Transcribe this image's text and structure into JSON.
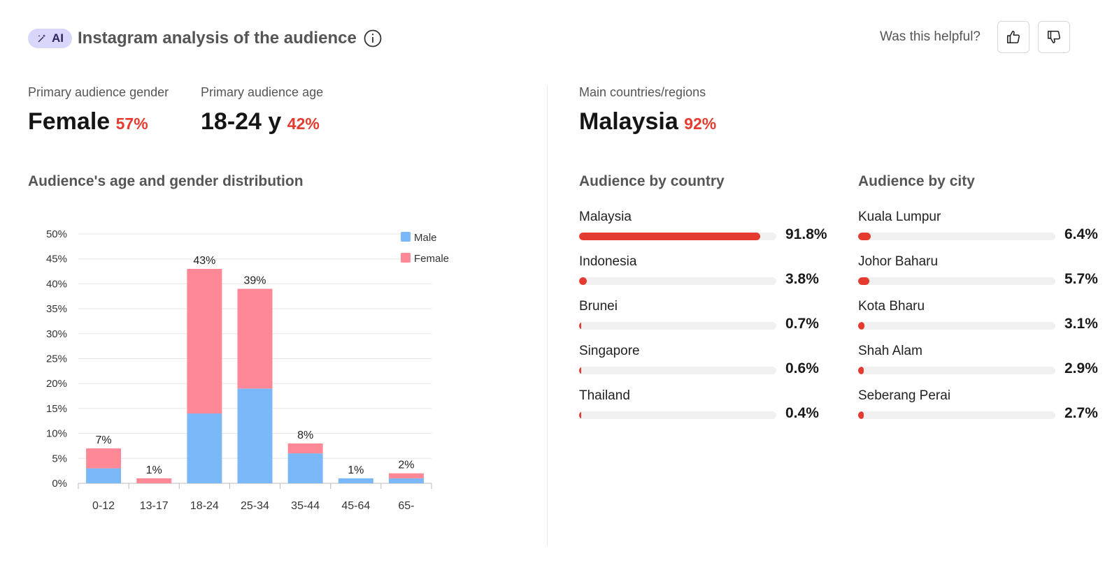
{
  "header": {
    "badge_label": "AI",
    "title": "Instagram analysis of the audience",
    "helpful_label": "Was this helpful?"
  },
  "stats": {
    "gender": {
      "label": "Primary audience gender",
      "value": "Female",
      "percent": "57%"
    },
    "age": {
      "label": "Primary audience age",
      "value": "18-24 y",
      "percent": "42%"
    },
    "country": {
      "label": "Main countries/regions",
      "value": "Malaysia",
      "percent": "92%"
    }
  },
  "sections": {
    "age_gender": "Audience's age and gender distribution",
    "country": "Audience by country",
    "city": "Audience by city"
  },
  "chart_data": {
    "type": "bar",
    "stacked": true,
    "categories": [
      "0-12",
      "13-17",
      "18-24",
      "25-34",
      "35-44",
      "45-64",
      "65-"
    ],
    "series": [
      {
        "name": "Male",
        "color": "#7ab8f7",
        "values": [
          3,
          0,
          14,
          19,
          6,
          1,
          1
        ]
      },
      {
        "name": "Female",
        "color": "#ff8896",
        "values": [
          4,
          1,
          29,
          20,
          2,
          0,
          1
        ]
      }
    ],
    "totals": [
      "7%",
      "1%",
      "43%",
      "39%",
      "8%",
      "1%",
      "2%"
    ],
    "y_ticks": [
      "0%",
      "5%",
      "10%",
      "15%",
      "20%",
      "25%",
      "30%",
      "35%",
      "40%",
      "45%",
      "50%"
    ],
    "ylim": [
      0,
      50
    ],
    "grid": true,
    "legend": "top-right"
  },
  "countries": [
    {
      "name": "Malaysia",
      "value": 91.8,
      "label": "91.8%"
    },
    {
      "name": "Indonesia",
      "value": 3.8,
      "label": "3.8%"
    },
    {
      "name": "Brunei",
      "value": 0.7,
      "label": "0.7%"
    },
    {
      "name": "Singapore",
      "value": 0.6,
      "label": "0.6%"
    },
    {
      "name": "Thailand",
      "value": 0.4,
      "label": "0.4%"
    }
  ],
  "cities": [
    {
      "name": "Kuala Lumpur",
      "value": 6.4,
      "label": "6.4%"
    },
    {
      "name": "Johor Baharu",
      "value": 5.7,
      "label": "5.7%"
    },
    {
      "name": "Kota Bharu",
      "value": 3.1,
      "label": "3.1%"
    },
    {
      "name": "Shah Alam",
      "value": 2.9,
      "label": "2.9%"
    },
    {
      "name": "Seberang Perai",
      "value": 2.7,
      "label": "2.7%"
    }
  ],
  "colors": {
    "accent": "#e53a2f",
    "male": "#7ab8f7",
    "female": "#ff8896",
    "badge": "#d9d6fb"
  }
}
